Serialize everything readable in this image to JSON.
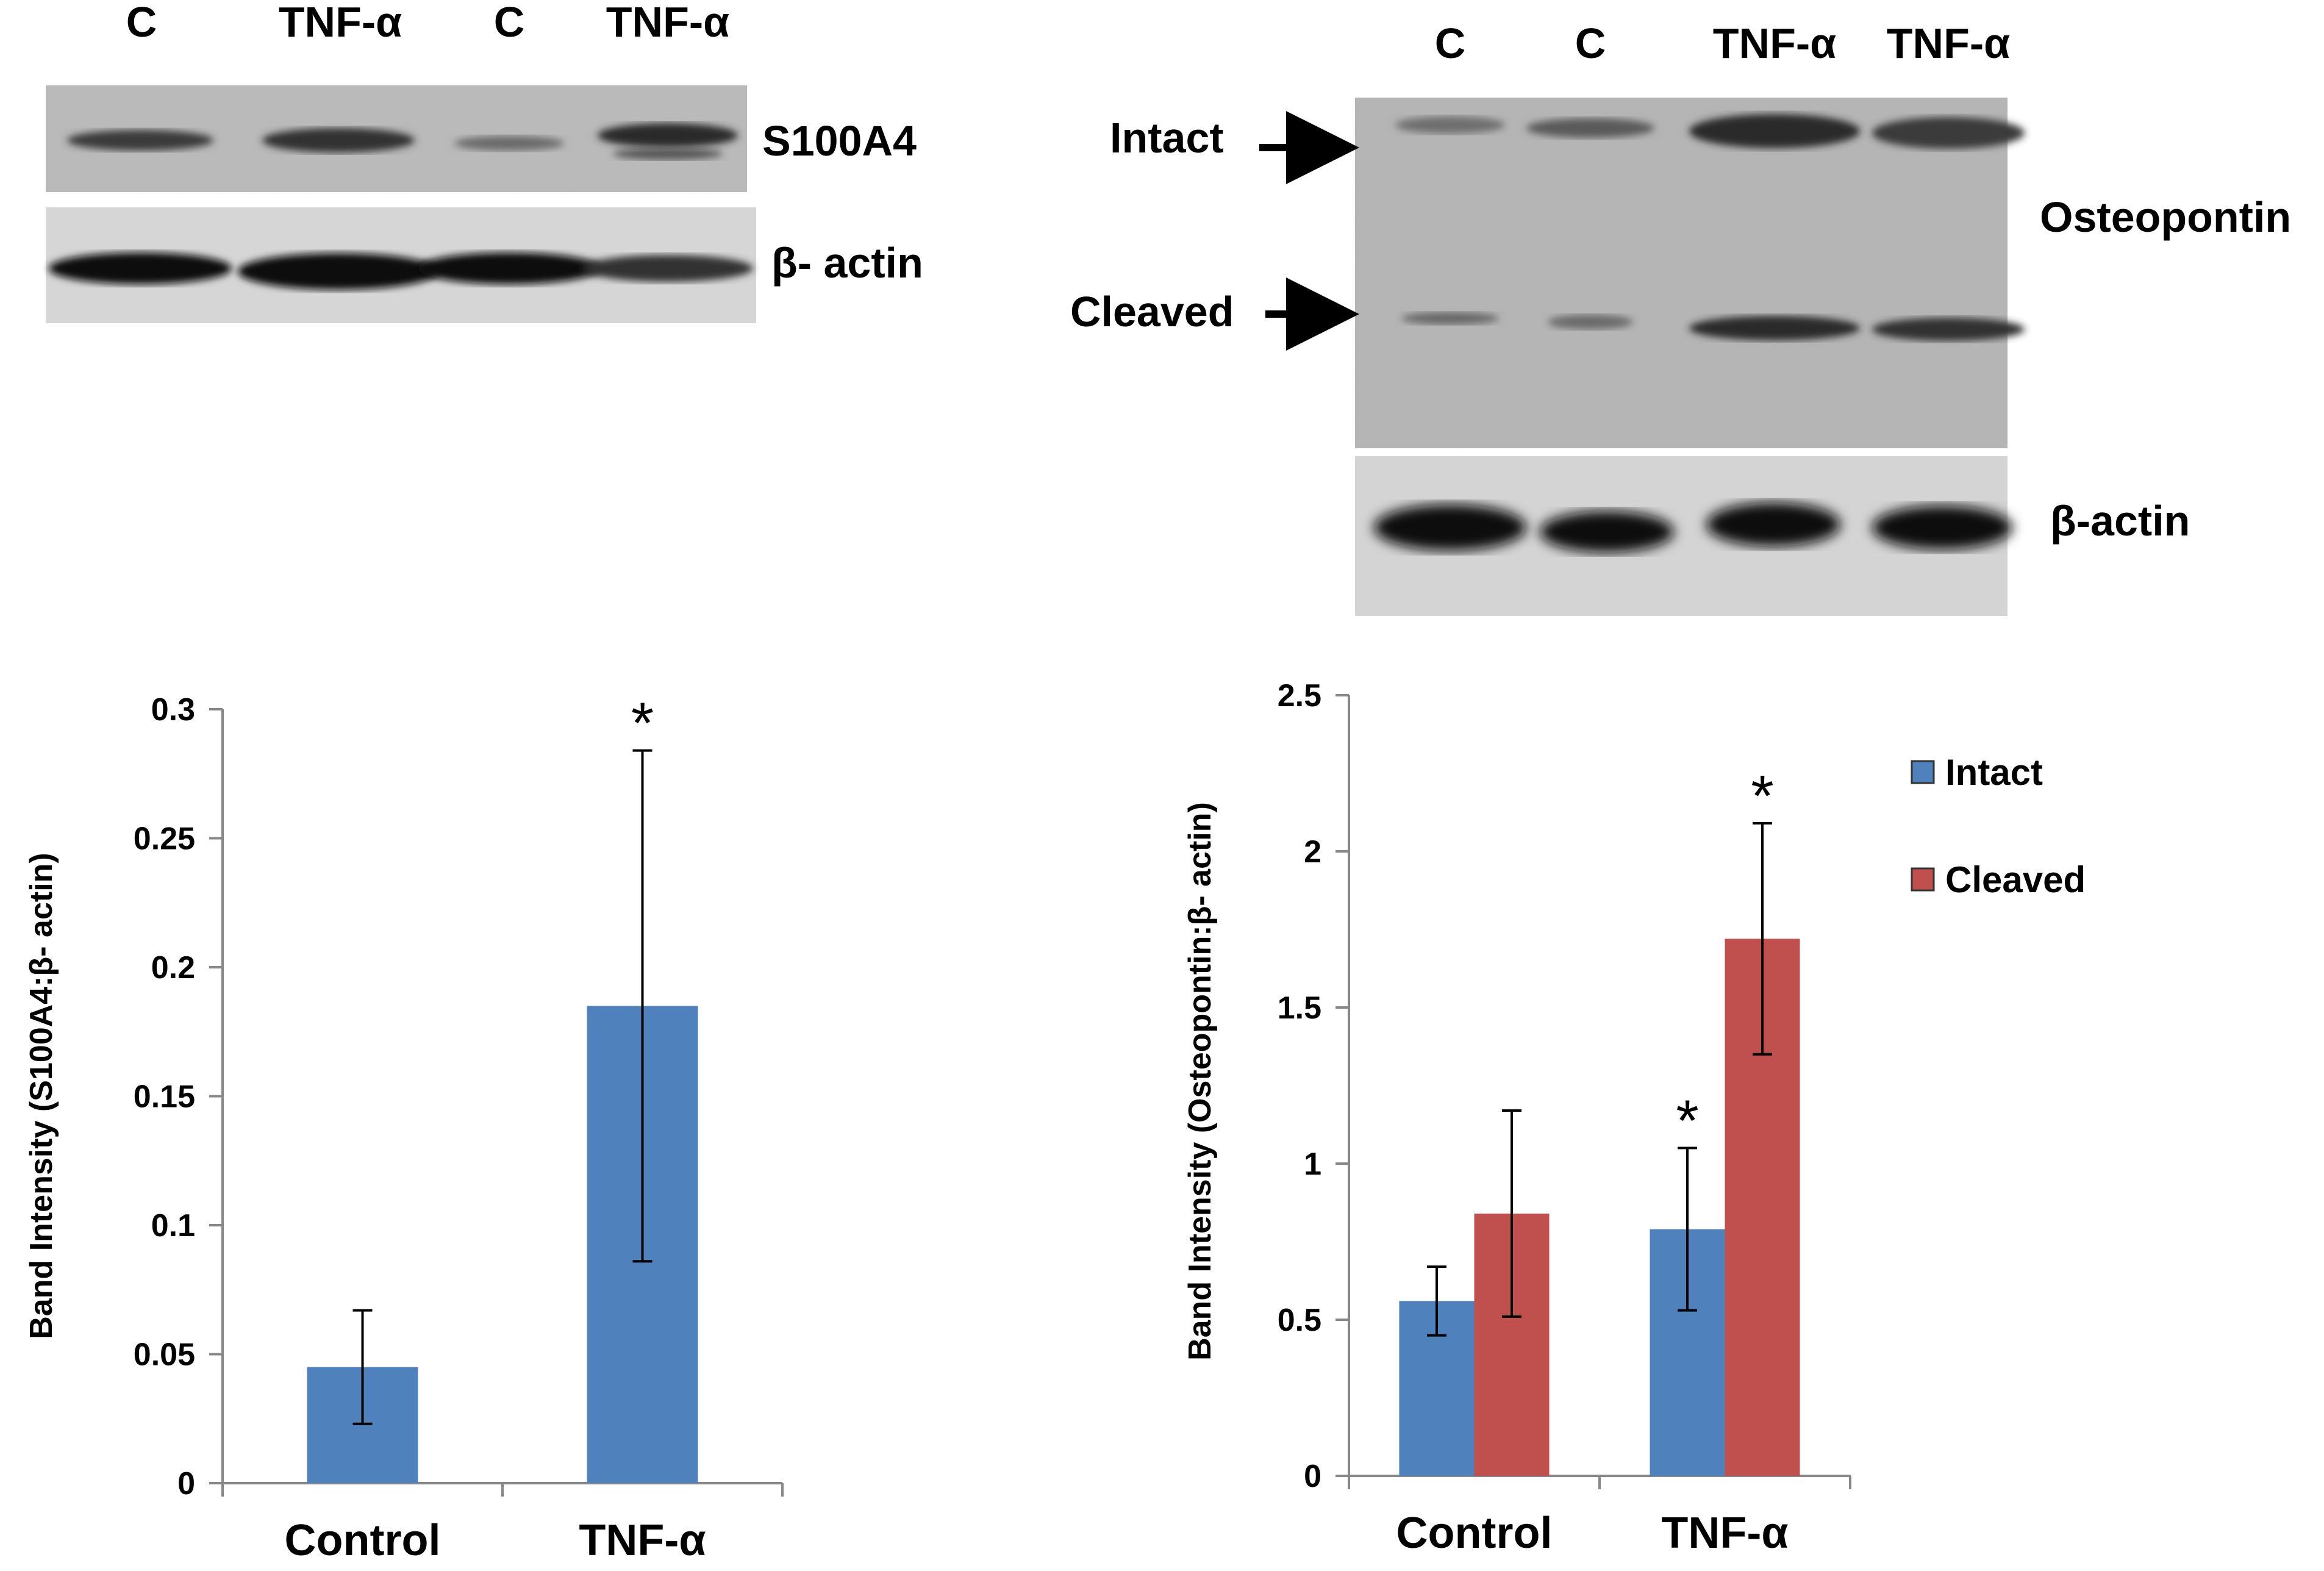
{
  "blot_left": {
    "lane_labels": [
      "C",
      "TNF-α",
      "C",
      "TNF-α"
    ],
    "band_label": "S100A4",
    "actin_label": "β- actin"
  },
  "blot_right": {
    "lane_labels": [
      "C",
      "C",
      "TNF-α",
      "TNF-α"
    ],
    "intact_label": "Intact",
    "cleaved_label": "Cleaved",
    "protein_label": "Osteopontin",
    "actin_label": "β-actin"
  },
  "chart_data": [
    {
      "type": "bar",
      "title": "",
      "categories": [
        "Control",
        "TNF-α"
      ],
      "series": [
        {
          "values": [
            0.045,
            0.185
          ],
          "errors": [
            0.022,
            0.099
          ],
          "color": "#4f81bd"
        }
      ],
      "significance": [
        "",
        "*"
      ],
      "xlabel": "",
      "ylabel": "Band Intensity (S100A4:β- actin)",
      "ylim": [
        0,
        0.3
      ],
      "yticks": [
        "0",
        "0.05",
        "0.1",
        "0.15",
        "0.2",
        "0.25",
        "0.3"
      ],
      "grid": false,
      "legend": "none"
    },
    {
      "type": "bar",
      "title": "",
      "categories": [
        "Control",
        "TNF-α"
      ],
      "series": [
        {
          "name": "Intact",
          "values": [
            0.56,
            0.79
          ],
          "errors": [
            0.11,
            0.26
          ],
          "color": "#4f81bd",
          "significance": [
            "",
            "*"
          ]
        },
        {
          "name": "Cleaved",
          "values": [
            0.84,
            1.72
          ],
          "errors": [
            0.33,
            0.37
          ],
          "color": "#c0504d",
          "significance": [
            "",
            "*"
          ]
        }
      ],
      "xlabel": "",
      "ylabel": "Band Intensity (Osteopontin:β- actin)",
      "ylim": [
        0,
        2.5
      ],
      "yticks": [
        "0",
        "0.5",
        "1",
        "1.5",
        "2",
        "2.5"
      ],
      "grid": false,
      "legend": "right"
    }
  ]
}
